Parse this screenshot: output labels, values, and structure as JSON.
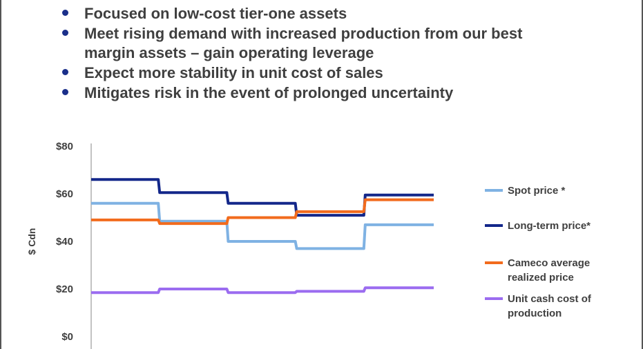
{
  "bullets": [
    {
      "text": "Focused on low-cost tier-one assets"
    },
    {
      "text": "Meet rising demand with increased production from our best",
      "continuation": "margin assets – gain operating leverage"
    },
    {
      "text": "Expect more stability in unit cost of sales"
    },
    {
      "text": "Mitigates risk in the event of prolonged uncertainty"
    }
  ],
  "colors": {
    "bullet": "#1a2f8a",
    "text": "#3f3f3f"
  },
  "chart_data": {
    "type": "line",
    "ylabel": "$ Cdn",
    "ylim": [
      0,
      80
    ],
    "yticks": [
      0,
      20,
      40,
      60,
      80
    ],
    "ytick_labels": [
      "$0",
      "$20",
      "$40",
      "$60",
      "$80"
    ],
    "grid": false,
    "legend_position": "right",
    "x": [
      0,
      0.98,
      1.0,
      1.98,
      2.0,
      2.98,
      3.0,
      3.98,
      4.0,
      5.0
    ],
    "xlim": [
      0,
      5
    ],
    "series": [
      {
        "name": "Spot price *",
        "color": "#7fb2e3",
        "values": [
          56,
          56,
          48.5,
          48.5,
          40,
          40,
          37,
          37,
          47,
          47
        ]
      },
      {
        "name": "Long-term price*",
        "color": "#13278a",
        "values": [
          66,
          66,
          60.5,
          60.5,
          56,
          56,
          51,
          51,
          59.5,
          59.5
        ]
      },
      {
        "name": "Cameco average realized price",
        "name_lines": [
          "Cameco average",
          "realized price"
        ],
        "color": "#f26b1d",
        "values": [
          49,
          49,
          47.5,
          47.5,
          50,
          50,
          52.5,
          52.5,
          57.5,
          57.5
        ]
      },
      {
        "name": "Unit cash cost of production",
        "name_lines": [
          "Unit cash cost of",
          "production"
        ],
        "color": "#9b6cf0",
        "values": [
          18.5,
          18.5,
          20,
          20,
          18.5,
          18.5,
          19,
          19,
          20.5,
          20.5
        ]
      }
    ]
  }
}
